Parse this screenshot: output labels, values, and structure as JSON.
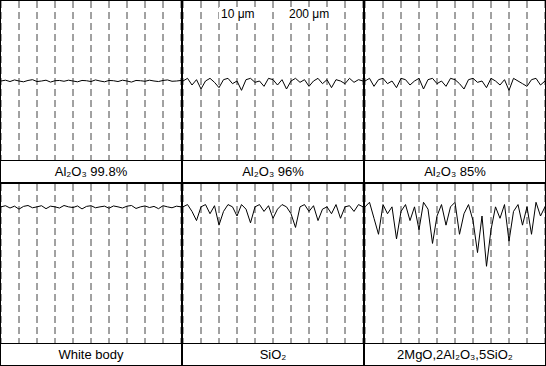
{
  "chart_data": [
    {
      "type": "line",
      "title": "Al₂O₃ 99.8%",
      "color": "#000000",
      "line_style": "solid",
      "grid": true,
      "tick_labels": false,
      "x": [
        0,
        1,
        2,
        3,
        4,
        5,
        6,
        7,
        8,
        9,
        10,
        11,
        12,
        13,
        14,
        15,
        16,
        17,
        18,
        19,
        20,
        21,
        22,
        23,
        24,
        25,
        26,
        27,
        28,
        29,
        30,
        31,
        32,
        33,
        34,
        35,
        36,
        37,
        38,
        39,
        40
      ],
      "values": [
        0,
        0.3,
        -0.2,
        0.4,
        0,
        -0.3,
        0.2,
        0.5,
        -0.2,
        0,
        0.3,
        -0.4,
        0.1,
        0.2,
        -0.1,
        0.3,
        0,
        -0.3,
        0.2,
        0.1,
        -0.2,
        0.4,
        0,
        -0.3,
        0.2,
        0.1,
        -0.2,
        0.3,
        0,
        -0.4,
        0.2,
        0.1,
        -0.1,
        0.3,
        0,
        -0.2,
        0.2,
        0.4,
        -0.1,
        0,
        0.2
      ],
      "xlim": [
        0,
        40
      ],
      "xticks": [
        0,
        4,
        8,
        12,
        16,
        20,
        24,
        28,
        32,
        36,
        40
      ],
      "ylim": [
        -30,
        30
      ]
    },
    {
      "type": "line",
      "title": "Al₂O₃ 96%",
      "color": "#000000",
      "line_style": "solid",
      "grid": true,
      "tick_labels": false,
      "annotations": [
        "10 μm",
        "200 μm"
      ],
      "x": [
        0,
        1,
        2,
        3,
        4,
        5,
        6,
        7,
        8,
        9,
        10,
        11,
        12,
        13,
        14,
        15,
        16,
        17,
        18,
        19,
        20,
        21,
        22,
        23,
        24,
        25,
        26,
        27,
        28,
        29,
        30,
        31,
        32,
        33,
        34,
        35,
        36,
        37,
        38,
        39,
        40
      ],
      "values": [
        0,
        1,
        -1.5,
        0.5,
        -3,
        0,
        1,
        -0.5,
        -2.5,
        0.5,
        1,
        -1,
        0,
        -3.5,
        0.5,
        1,
        -0.5,
        0,
        -2,
        1,
        0.5,
        -1.5,
        0.5,
        -3,
        0,
        1,
        -0.5,
        0.5,
        -2,
        0,
        1,
        -1,
        0.5,
        -2.5,
        0.5,
        0,
        -1,
        1,
        -0.5,
        0.5,
        0
      ],
      "xlim": [
        0,
        40
      ],
      "xticks": [
        0,
        4,
        8,
        12,
        16,
        20,
        24,
        28,
        32,
        36,
        40
      ],
      "ylim": [
        -30,
        30
      ]
    },
    {
      "type": "line",
      "title": "Al₂O₃ 85%",
      "color": "#000000",
      "line_style": "solid",
      "grid": true,
      "tick_labels": false,
      "x": [
        0,
        1,
        2,
        3,
        4,
        5,
        6,
        7,
        8,
        9,
        10,
        11,
        12,
        13,
        14,
        15,
        16,
        17,
        18,
        19,
        20,
        21,
        22,
        23,
        24,
        25,
        26,
        27,
        28,
        29,
        30,
        31,
        32,
        33,
        34,
        35,
        36,
        37,
        38,
        39,
        40
      ],
      "values": [
        0,
        1,
        -2,
        0.5,
        1,
        -1,
        0,
        -2.5,
        1,
        0.5,
        -1.5,
        0,
        1,
        -3,
        0.5,
        1,
        -1,
        0,
        -2,
        1,
        0.5,
        -1,
        -3,
        0.5,
        1,
        -0.5,
        0,
        -2.5,
        1,
        0,
        -1.5,
        0.5,
        -3.5,
        1,
        0,
        -1,
        -2,
        0.5,
        1,
        -1.5,
        0
      ],
      "xlim": [
        0,
        40
      ],
      "xticks": [
        0,
        4,
        8,
        12,
        16,
        20,
        24,
        28,
        32,
        36,
        40
      ],
      "ylim": [
        -30,
        30
      ]
    },
    {
      "type": "line",
      "title": "White body",
      "color": "#000000",
      "line_style": "solid",
      "grid": true,
      "tick_labels": false,
      "x": [
        0,
        1,
        2,
        3,
        4,
        5,
        6,
        7,
        8,
        9,
        10,
        11,
        12,
        13,
        14,
        15,
        16,
        17,
        18,
        19,
        20,
        21,
        22,
        23,
        24,
        25,
        26,
        27,
        28,
        29,
        30,
        31,
        32,
        33,
        34,
        35,
        36,
        37,
        38,
        39,
        40
      ],
      "values": [
        0,
        0.5,
        -0.5,
        0.3,
        -1,
        0.2,
        0.6,
        -0.4,
        0,
        0.5,
        -0.8,
        0.3,
        0,
        -0.5,
        0.6,
        0,
        -0.3,
        0.4,
        -0.9,
        0.2,
        0.5,
        -0.4,
        0,
        0.3,
        -0.6,
        0.4,
        0,
        -0.5,
        0.3,
        0.6,
        -0.7,
        0,
        0.4,
        -0.3,
        0.2,
        -0.8,
        0.5,
        0,
        -0.4,
        0.3,
        0
      ],
      "xlim": [
        0,
        40
      ],
      "xticks": [
        0,
        4,
        8,
        12,
        16,
        20,
        24,
        28,
        32,
        36,
        40
      ],
      "ylim": [
        -60,
        10
      ]
    },
    {
      "type": "line",
      "title": "SiO₂",
      "color": "#000000",
      "line_style": "solid",
      "grid": true,
      "tick_labels": false,
      "x": [
        0,
        1,
        2,
        3,
        4,
        5,
        6,
        7,
        8,
        9,
        10,
        11,
        12,
        13,
        14,
        15,
        16,
        17,
        18,
        19,
        20,
        21,
        22,
        23,
        24,
        25,
        26,
        27,
        28,
        29,
        30,
        31,
        32,
        33,
        34,
        35,
        36,
        37,
        38,
        39,
        40
      ],
      "values": [
        0,
        1,
        -2,
        -6,
        0,
        1,
        -3,
        0.5,
        -8,
        -2,
        1,
        0,
        -4,
        1,
        -1,
        -7,
        0,
        1,
        -2,
        0.5,
        -5,
        -1,
        1,
        0,
        -3,
        -9,
        0,
        1,
        -2,
        0.5,
        -6,
        -1,
        0,
        -3,
        1,
        -5,
        0,
        0.5,
        -2,
        1,
        0
      ],
      "xlim": [
        0,
        40
      ],
      "xticks": [
        0,
        4,
        8,
        12,
        16,
        20,
        24,
        28,
        32,
        36,
        40
      ],
      "ylim": [
        -60,
        10
      ]
    },
    {
      "type": "line",
      "title": "2MgO,2Al₂O₃,5SiO₂",
      "color": "#000000",
      "line_style": "solid",
      "grid": true,
      "tick_labels": false,
      "x": [
        0,
        1,
        2,
        3,
        4,
        5,
        6,
        7,
        8,
        9,
        10,
        11,
        12,
        13,
        14,
        15,
        16,
        17,
        18,
        19,
        20,
        21,
        22,
        23,
        24,
        25,
        26,
        27,
        28,
        29,
        30,
        31,
        32,
        33,
        34,
        35,
        36,
        37,
        38,
        39,
        40
      ],
      "values": [
        0,
        2,
        -5,
        -12,
        1,
        -3,
        0,
        -14,
        -2,
        1,
        -6,
        0,
        -10,
        2,
        -1,
        -16,
        -4,
        1,
        -8,
        0,
        2,
        -12,
        -3,
        1,
        -6,
        -20,
        -4,
        -26,
        -10,
        0,
        -5,
        1,
        -15,
        -2,
        1,
        -8,
        0,
        -12,
        2,
        -4,
        0
      ],
      "xlim": [
        0,
        40
      ],
      "xticks": [
        0,
        4,
        8,
        12,
        16,
        20,
        24,
        28,
        32,
        36,
        40
      ],
      "ylim": [
        -60,
        10
      ]
    }
  ]
}
